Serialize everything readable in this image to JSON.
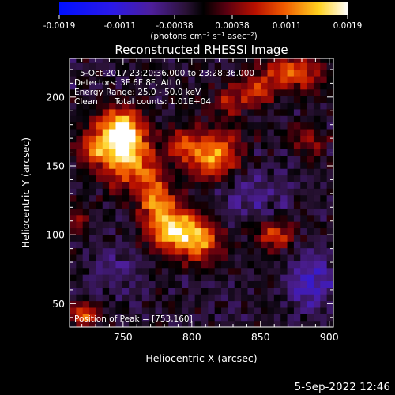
{
  "chart_data": {
    "type": "heatmap",
    "title": "Reconstructed RHESSI Image",
    "xlabel": "Heliocentric X (arcsec)",
    "ylabel": "Heliocentric Y (arcsec)",
    "xlim": [
      711,
      903
    ],
    "ylim": [
      33,
      228
    ],
    "xticks": [
      750,
      800,
      850,
      900
    ],
    "yticks": [
      50,
      100,
      150,
      200
    ],
    "colorbar": {
      "ticks": [
        "-0.0019",
        "-0.0011",
        "-0.00038",
        "0.00038",
        "0.0011",
        "0.0019"
      ],
      "tick_values": [
        -0.0019,
        -0.0011,
        -0.00038,
        0.00038,
        0.0011,
        0.0019
      ],
      "range": [
        -0.0019,
        0.0019
      ],
      "unit_label": "(photons cm⁻² s⁻¹ asec⁻²)",
      "colormap": "rhessi-colortable-5"
    },
    "annotations": [
      "5-Oct-2017 23:20:36.000 to 23:28:36.000",
      "Detectors: 3F 6F 8F, Att 0",
      "Energy Range: 25.0 - 50.0 keV",
      "Clean",
      "Total counts: 1.01E+04"
    ],
    "peak_label": "Position of Peak = [753,160]",
    "peak": [
      753,
      160
    ],
    "sources": [
      {
        "x": 750,
        "y": 162,
        "sx": 13,
        "sy": 16,
        "amp": 1.0
      },
      {
        "x": 748,
        "y": 178,
        "sx": 10,
        "sy": 10,
        "amp": 0.55
      },
      {
        "x": 771,
        "y": 138,
        "sx": 10,
        "sy": 12,
        "amp": 0.45
      },
      {
        "x": 816,
        "y": 158,
        "sx": 13,
        "sy": 13,
        "amp": 0.82
      },
      {
        "x": 792,
        "y": 166,
        "sx": 8,
        "sy": 8,
        "amp": 0.45
      },
      {
        "x": 787,
        "y": 104,
        "sx": 14,
        "sy": 12,
        "amp": 0.92
      },
      {
        "x": 808,
        "y": 95,
        "sx": 10,
        "sy": 10,
        "amp": 0.55
      },
      {
        "x": 775,
        "y": 122,
        "sx": 8,
        "sy": 8,
        "amp": 0.4
      },
      {
        "x": 728,
        "y": 165,
        "sx": 8,
        "sy": 9,
        "amp": 0.42
      },
      {
        "x": 860,
        "y": 100,
        "sx": 10,
        "sy": 7,
        "amp": 0.55
      },
      {
        "x": 874,
        "y": 218,
        "sx": 16,
        "sy": 9,
        "amp": 0.58
      },
      {
        "x": 846,
        "y": 205,
        "sx": 9,
        "sy": 9,
        "amp": 0.45
      },
      {
        "x": 827,
        "y": 198,
        "sx": 8,
        "sy": 8,
        "amp": 0.35
      },
      {
        "x": 884,
        "y": 168,
        "sx": 10,
        "sy": 7,
        "amp": 0.35
      },
      {
        "x": 722,
        "y": 42,
        "sx": 8,
        "sy": 7,
        "amp": 0.55
      },
      {
        "x": 716,
        "y": 110,
        "sx": 6,
        "sy": 8,
        "amp": 0.3
      }
    ],
    "background_level": -0.08,
    "negative_regions": [
      {
        "x": 888,
        "y": 65,
        "sx": 12,
        "sy": 14,
        "amp": -0.4
      },
      {
        "x": 840,
        "y": 130,
        "sx": 20,
        "sy": 14,
        "amp": -0.22
      },
      {
        "x": 745,
        "y": 75,
        "sx": 14,
        "sy": 12,
        "amp": -0.18
      }
    ]
  },
  "footer": {
    "datetime": "5-Sep-2022 12:46"
  }
}
